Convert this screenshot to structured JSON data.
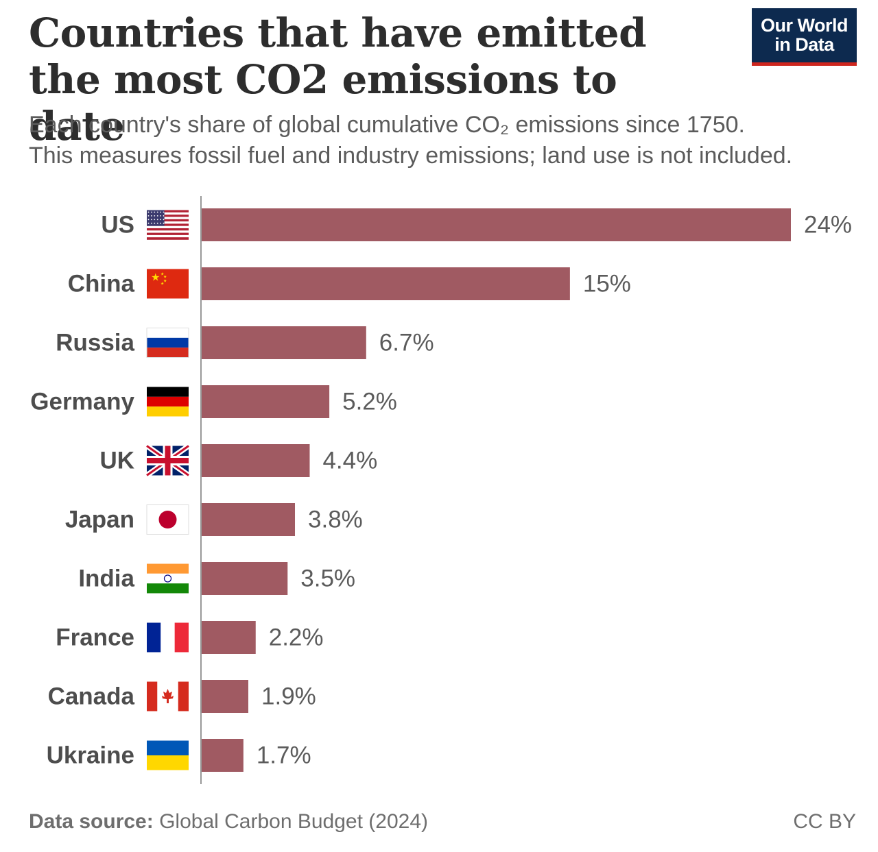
{
  "header": {
    "title": "Countries that have emitted the most CO2 emissions to date",
    "subtitle_line1": "Each country's share of global cumulative CO₂ emissions since 1750.",
    "subtitle_line2": "This measures fossil fuel and industry emissions; land use is not included."
  },
  "logo": {
    "line1": "Our World",
    "line2": "in Data"
  },
  "footer": {
    "source_label": "Data source:",
    "source_text": "Global Carbon Budget (2024)",
    "license": "CC BY"
  },
  "chart_data": {
    "type": "bar",
    "orientation": "horizontal",
    "title": "Countries that have emitted the most CO2 emissions to date",
    "categories": [
      "US",
      "China",
      "Russia",
      "Germany",
      "UK",
      "Japan",
      "India",
      "France",
      "Canada",
      "Ukraine"
    ],
    "values": [
      24,
      15,
      6.7,
      5.2,
      4.4,
      3.8,
      3.5,
      2.2,
      1.9,
      1.7
    ],
    "labels": [
      "24%",
      "15%",
      "6.7%",
      "5.2%",
      "4.4%",
      "3.8%",
      "3.5%",
      "2.2%",
      "1.9%",
      "1.7%"
    ],
    "flags": [
      "us-flag-icon",
      "china-flag-icon",
      "russia-flag-icon",
      "germany-flag-icon",
      "uk-flag-icon",
      "japan-flag-icon",
      "india-flag-icon",
      "france-flag-icon",
      "canada-flag-icon",
      "ukraine-flag-icon"
    ],
    "unit": "%",
    "bar_color": "#a05a62",
    "grid": false,
    "legend": "none"
  }
}
